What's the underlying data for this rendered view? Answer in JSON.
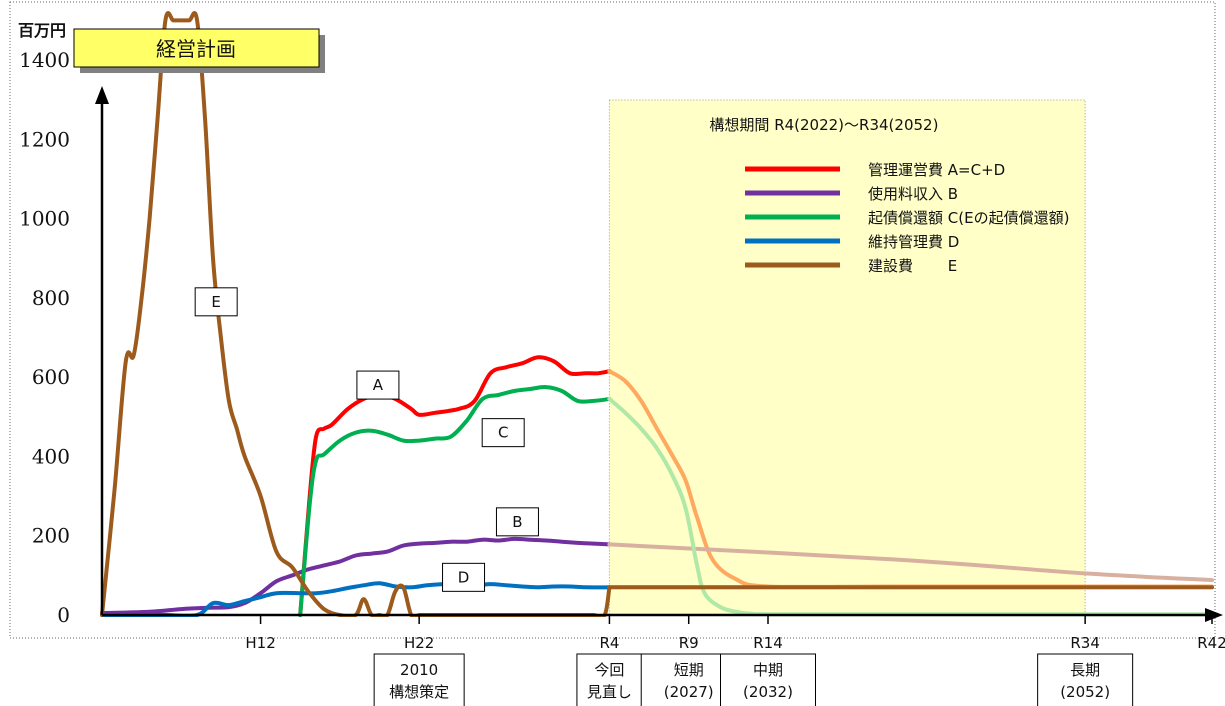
{
  "plan_label": "経営計画",
  "chart_data": {
    "type": "line",
    "ylabel": "百万円",
    "ylim": [
      0,
      1400
    ],
    "yticks": [
      0,
      200,
      400,
      600,
      800,
      1000,
      1200,
      1400
    ],
    "xlim": [
      1990,
      2060
    ],
    "x_ticks": [
      {
        "label": "H12",
        "x": 2000
      },
      {
        "label": "H22",
        "x": 2010
      },
      {
        "label": "R4",
        "x": 2022
      },
      {
        "label": "R9",
        "x": 2027
      },
      {
        "label": "R14",
        "x": 2032
      },
      {
        "label": "R34",
        "x": 2052
      },
      {
        "label": "R42",
        "x": 2060
      }
    ],
    "concept_period": {
      "label": "構想期間 R4(2022)～R34(2052)",
      "start": 2022,
      "end": 2052
    },
    "legend": [
      {
        "key": "A",
        "label": "管理運営費 A=C+D",
        "color": "#ff0000"
      },
      {
        "key": "B",
        "label": "使用料収入 B",
        "color": "#7030a0"
      },
      {
        "key": "C",
        "label": "起債償還額 C(Eの起債償還額)",
        "color": "#00b050"
      },
      {
        "key": "D",
        "label": "維持管理費 D",
        "color": "#0070c0"
      },
      {
        "key": "E",
        "label": "建設費　　 E",
        "color": "#9c5b1c"
      }
    ],
    "series": [
      {
        "key": "A",
        "color": "#ff0000",
        "future_color": "#ffa860",
        "x": [
          2002.5,
          2003.1,
          2003.5,
          2004.0,
          2004.5,
          2005.5,
          2006.5,
          2007.5,
          2008.5,
          2009.5,
          2010.0,
          2011.0,
          2012.5,
          2013.5,
          2014.5,
          2015.5,
          2016.5,
          2017.5,
          2018.5,
          2019.5,
          2020.5,
          2021.3,
          2022.0,
          2023.0,
          2024.0,
          2025.0,
          2026.0,
          2026.8,
          2027.5,
          2028.5,
          2030.0,
          2032.0,
          2040.0,
          2052.0,
          2060.0
        ],
        "y": [
          0,
          300,
          450,
          470,
          480,
          520,
          545,
          555,
          545,
          520,
          505,
          510,
          520,
          540,
          610,
          625,
          635,
          650,
          640,
          610,
          610,
          610,
          615,
          590,
          540,
          470,
          400,
          340,
          250,
          140,
          90,
          72,
          72,
          72,
          72
        ]
      },
      {
        "key": "B",
        "color": "#7030a0",
        "future_color": "#d8b0a0",
        "x": [
          1990.0,
          1993.0,
          1995.0,
          1996.5,
          1998.0,
          1999.0,
          2000.0,
          2001.0,
          2002.0,
          2003.0,
          2004.0,
          2005.0,
          2006.0,
          2007.0,
          2008.0,
          2009.0,
          2010.0,
          2011.0,
          2012.0,
          2013.0,
          2014.0,
          2015.0,
          2016.0,
          2017.0,
          2018.0,
          2019.0,
          2020.0,
          2021.0,
          2022.0,
          2040.0,
          2052.0,
          2060.0
        ],
        "y": [
          5,
          8,
          15,
          18,
          20,
          30,
          55,
          85,
          100,
          115,
          125,
          135,
          150,
          155,
          160,
          175,
          180,
          182,
          185,
          185,
          190,
          188,
          192,
          190,
          188,
          185,
          182,
          180,
          178,
          140,
          105,
          88
        ]
      },
      {
        "key": "C",
        "color": "#00b050",
        "future_color": "#b0e8a8",
        "x": [
          2002.5,
          2003.1,
          2003.5,
          2004.0,
          2005.0,
          2006.0,
          2007.0,
          2008.0,
          2009.0,
          2010.0,
          2011.0,
          2012.0,
          2013.0,
          2014.0,
          2015.0,
          2016.0,
          2017.0,
          2018.0,
          2019.0,
          2020.0,
          2021.0,
          2022.0,
          2023.0,
          2024.0,
          2025.0,
          2026.0,
          2026.8,
          2027.5,
          2028.0,
          2029.0,
          2030.0,
          2031.0,
          2032.0,
          2040.0,
          2060.0
        ],
        "y": [
          0,
          280,
          390,
          405,
          440,
          460,
          465,
          455,
          440,
          440,
          445,
          450,
          490,
          545,
          555,
          565,
          570,
          575,
          565,
          540,
          540,
          545,
          510,
          470,
          420,
          350,
          270,
          130,
          55,
          20,
          8,
          3,
          2,
          2,
          2
        ]
      },
      {
        "key": "D",
        "color": "#0070c0",
        "future_color": "#a6d4e8",
        "x": [
          1990.0,
          1992.0,
          1994.0,
          1996.0,
          1997.0,
          1998.0,
          1999.0,
          2000.0,
          2001.0,
          2002.5,
          2003.5,
          2004.5,
          2005.5,
          2006.5,
          2007.5,
          2008.5,
          2009.5,
          2010.5,
          2011.5,
          2012.5,
          2013.5,
          2014.5,
          2015.5,
          2016.5,
          2017.5,
          2018.5,
          2019.5,
          2020.5,
          2022.0,
          2060.0
        ],
        "y": [
          0,
          0,
          0,
          0,
          30,
          25,
          35,
          45,
          55,
          55,
          55,
          60,
          68,
          75,
          80,
          72,
          70,
          75,
          78,
          78,
          75,
          78,
          75,
          72,
          70,
          72,
          72,
          70,
          70,
          70
        ]
      },
      {
        "key": "E",
        "color": "#9c5b1c",
        "future_color": "#9c5b1c",
        "x": [
          1990.0,
          1990.8,
          1991.5,
          1992.0,
          1992.5,
          1993.0,
          1993.5,
          1994.0,
          1994.5,
          1995.0,
          1995.5,
          1996.0,
          1996.5,
          1997.0,
          1997.5,
          1998.0,
          1998.5,
          1999.0,
          2000.0,
          2001.0,
          2002.0,
          2003.0,
          2004.0,
          2005.0,
          2006.0,
          2006.5,
          2007.0,
          2007.5,
          2008.0,
          2008.5,
          2009.0,
          2009.5,
          2010.0,
          2010.5,
          2011.0,
          2012.0,
          2015.0,
          2020.0,
          2021.0,
          2021.7,
          2022.0,
          2030.0,
          2060.0
        ],
        "y": [
          0,
          320,
          640,
          655,
          800,
          1000,
          1250,
          1500,
          1500,
          1500,
          1500,
          1500,
          1250,
          900,
          700,
          540,
          470,
          400,
          300,
          160,
          120,
          60,
          15,
          0,
          0,
          40,
          0,
          0,
          0,
          60,
          70,
          0,
          0,
          0,
          0,
          0,
          0,
          0,
          0,
          0,
          70,
          70,
          70
        ]
      }
    ],
    "callouts": [
      {
        "label": "E",
        "x": 1997.2,
        "y": 790
      },
      {
        "label": "A",
        "x": 2007.4,
        "y": 580
      },
      {
        "label": "C",
        "x": 2015.3,
        "y": 460
      },
      {
        "label": "B",
        "x": 2016.2,
        "y": 235
      },
      {
        "label": "D",
        "x": 2012.8,
        "y": 95
      }
    ],
    "phase_boxes": [
      {
        "line1": "2010",
        "line2": "構想策定",
        "x": 2010
      },
      {
        "line1": "今回",
        "line2": "見直し",
        "x": 2022
      },
      {
        "line1": "短期",
        "line2": "(2027)",
        "x": 2027
      },
      {
        "line1": "中期",
        "line2": "(2032)",
        "x": 2032
      },
      {
        "line1": "長期",
        "line2": "(2052)",
        "x": 2052
      }
    ]
  }
}
